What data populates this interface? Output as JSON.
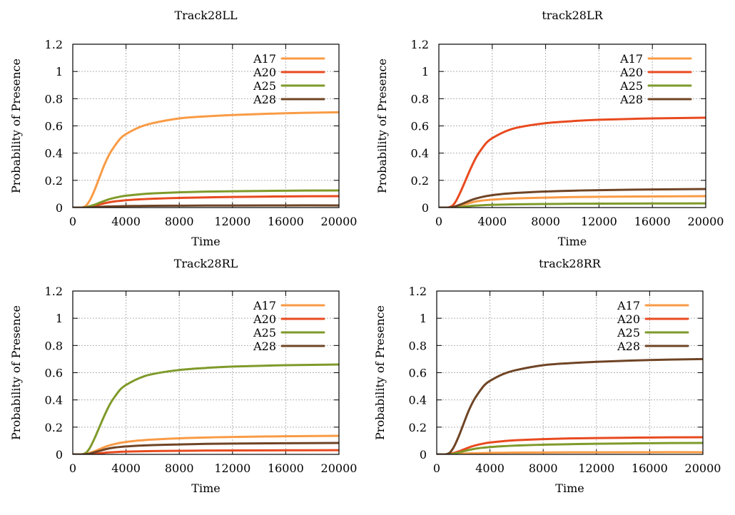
{
  "chart_data": [
    {
      "type": "line",
      "title": "Track28LL",
      "xlabel": "Time",
      "ylabel": "Probability of Presence",
      "xlim": [
        0,
        20000
      ],
      "ylim": [
        0,
        1.2
      ],
      "xticks": [
        "0",
        "4000",
        "8000",
        "12000",
        "16000",
        "20000"
      ],
      "yticks": [
        "0",
        "0.2",
        "0.4",
        "0.6",
        "0.8",
        "1",
        "1.2"
      ],
      "grid": true,
      "legend_position": "top-right",
      "x": [
        0,
        800,
        1200,
        1600,
        2000,
        2400,
        2800,
        3200,
        3600,
        4000,
        5000,
        6000,
        8000,
        10000,
        12000,
        16000,
        20000
      ],
      "series": [
        {
          "name": "A17",
          "color": "#F99B45",
          "values": [
            0,
            0.003,
            0.04,
            0.12,
            0.22,
            0.32,
            0.4,
            0.46,
            0.51,
            0.54,
            0.59,
            0.62,
            0.655,
            0.67,
            0.68,
            0.693,
            0.7
          ]
        },
        {
          "name": "A20",
          "color": "#E84A1F",
          "values": [
            0,
            0,
            0.003,
            0.012,
            0.022,
            0.032,
            0.04,
            0.046,
            0.05,
            0.054,
            0.06,
            0.065,
            0.071,
            0.075,
            0.078,
            0.082,
            0.084
          ]
        },
        {
          "name": "A25",
          "color": "#7F9A2A",
          "values": [
            0,
            0.001,
            0.008,
            0.02,
            0.035,
            0.05,
            0.063,
            0.073,
            0.081,
            0.087,
            0.097,
            0.104,
            0.112,
            0.117,
            0.12,
            0.124,
            0.126
          ]
        },
        {
          "name": "A28",
          "color": "#6F4425",
          "values": [
            0,
            0,
            0.001,
            0.003,
            0.005,
            0.007,
            0.008,
            0.009,
            0.01,
            0.011,
            0.012,
            0.013,
            0.014,
            0.015,
            0.015,
            0.016,
            0.016
          ]
        }
      ]
    },
    {
      "type": "line",
      "title": "track28LR",
      "xlabel": "Time",
      "ylabel": "Probability of Presence",
      "xlim": [
        0,
        20000
      ],
      "ylim": [
        0,
        1.2
      ],
      "xticks": [
        "0",
        "4000",
        "8000",
        "12000",
        "16000",
        "20000"
      ],
      "yticks": [
        "0",
        "0.2",
        "0.4",
        "0.6",
        "0.8",
        "1",
        "1.2"
      ],
      "grid": true,
      "legend_position": "top-right",
      "x": [
        0,
        800,
        1200,
        1600,
        2000,
        2400,
        2800,
        3200,
        3600,
        4000,
        5000,
        6000,
        8000,
        10000,
        12000,
        16000,
        20000
      ],
      "series": [
        {
          "name": "A17",
          "color": "#F99B45",
          "values": [
            0,
            0,
            0.004,
            0.014,
            0.025,
            0.036,
            0.045,
            0.051,
            0.055,
            0.058,
            0.064,
            0.068,
            0.073,
            0.077,
            0.079,
            0.082,
            0.084
          ]
        },
        {
          "name": "A20",
          "color": "#E84A1F",
          "values": [
            0,
            0.003,
            0.035,
            0.11,
            0.2,
            0.29,
            0.37,
            0.43,
            0.48,
            0.51,
            0.56,
            0.59,
            0.62,
            0.635,
            0.645,
            0.655,
            0.66
          ]
        },
        {
          "name": "A25",
          "color": "#7F9A2A",
          "values": [
            0,
            0,
            0.001,
            0.004,
            0.008,
            0.012,
            0.015,
            0.017,
            0.019,
            0.02,
            0.022,
            0.024,
            0.026,
            0.028,
            0.029,
            0.03,
            0.031
          ]
        },
        {
          "name": "A28",
          "color": "#6F4425",
          "values": [
            0,
            0.001,
            0.008,
            0.022,
            0.038,
            0.054,
            0.067,
            0.077,
            0.085,
            0.091,
            0.102,
            0.109,
            0.118,
            0.124,
            0.128,
            0.133,
            0.136
          ]
        }
      ]
    },
    {
      "type": "line",
      "title": "Track28RL",
      "xlabel": "Time",
      "ylabel": "Probability of Presence",
      "xlim": [
        0,
        20000
      ],
      "ylim": [
        0,
        1.2
      ],
      "xticks": [
        "0",
        "4000",
        "8000",
        "12000",
        "16000",
        "20000"
      ],
      "yticks": [
        "0",
        "0.2",
        "0.4",
        "0.6",
        "0.8",
        "1",
        "1.2"
      ],
      "grid": true,
      "legend_position": "top-right",
      "x": [
        0,
        800,
        1200,
        1600,
        2000,
        2400,
        2800,
        3200,
        3600,
        4000,
        5000,
        6000,
        8000,
        10000,
        12000,
        16000,
        20000
      ],
      "series": [
        {
          "name": "A17",
          "color": "#F99B45",
          "values": [
            0,
            0.001,
            0.008,
            0.022,
            0.038,
            0.054,
            0.067,
            0.077,
            0.085,
            0.091,
            0.102,
            0.109,
            0.118,
            0.124,
            0.128,
            0.133,
            0.136
          ]
        },
        {
          "name": "A20",
          "color": "#E84A1F",
          "values": [
            0,
            0,
            0.001,
            0.004,
            0.008,
            0.012,
            0.015,
            0.017,
            0.019,
            0.02,
            0.022,
            0.024,
            0.026,
            0.028,
            0.029,
            0.03,
            0.031
          ]
        },
        {
          "name": "A25",
          "color": "#7F9A2A",
          "values": [
            0,
            0.003,
            0.035,
            0.11,
            0.2,
            0.29,
            0.37,
            0.43,
            0.48,
            0.51,
            0.56,
            0.59,
            0.62,
            0.635,
            0.645,
            0.655,
            0.66
          ]
        },
        {
          "name": "A28",
          "color": "#6F4425",
          "values": [
            0,
            0,
            0.004,
            0.014,
            0.025,
            0.036,
            0.045,
            0.051,
            0.055,
            0.058,
            0.064,
            0.068,
            0.073,
            0.077,
            0.079,
            0.082,
            0.084
          ]
        }
      ]
    },
    {
      "type": "line",
      "title": "track28RR",
      "xlabel": "Time",
      "ylabel": "Probability of Presence",
      "xlim": [
        0,
        20000
      ],
      "ylim": [
        0,
        1.2
      ],
      "xticks": [
        "0",
        "4000",
        "8000",
        "12000",
        "16000",
        "20000"
      ],
      "yticks": [
        "0",
        "0.2",
        "0.4",
        "0.6",
        "0.8",
        "1",
        "1.2"
      ],
      "grid": true,
      "legend_position": "top-right",
      "x": [
        0,
        800,
        1200,
        1600,
        2000,
        2400,
        2800,
        3200,
        3600,
        4000,
        5000,
        6000,
        8000,
        10000,
        12000,
        16000,
        20000
      ],
      "series": [
        {
          "name": "A17",
          "color": "#F99B45",
          "values": [
            0,
            0,
            0.001,
            0.003,
            0.005,
            0.007,
            0.008,
            0.009,
            0.01,
            0.011,
            0.012,
            0.013,
            0.014,
            0.015,
            0.015,
            0.016,
            0.016
          ]
        },
        {
          "name": "A20",
          "color": "#E84A1F",
          "values": [
            0,
            0.001,
            0.008,
            0.02,
            0.035,
            0.05,
            0.063,
            0.073,
            0.081,
            0.087,
            0.097,
            0.104,
            0.112,
            0.117,
            0.12,
            0.124,
            0.126
          ]
        },
        {
          "name": "A25",
          "color": "#7F9A2A",
          "values": [
            0,
            0,
            0.003,
            0.012,
            0.022,
            0.032,
            0.04,
            0.046,
            0.05,
            0.054,
            0.06,
            0.065,
            0.071,
            0.075,
            0.078,
            0.082,
            0.084
          ]
        },
        {
          "name": "A28",
          "color": "#6F4425",
          "values": [
            0,
            0.003,
            0.04,
            0.12,
            0.22,
            0.32,
            0.4,
            0.46,
            0.51,
            0.54,
            0.59,
            0.62,
            0.655,
            0.67,
            0.68,
            0.693,
            0.7
          ]
        }
      ]
    }
  ]
}
